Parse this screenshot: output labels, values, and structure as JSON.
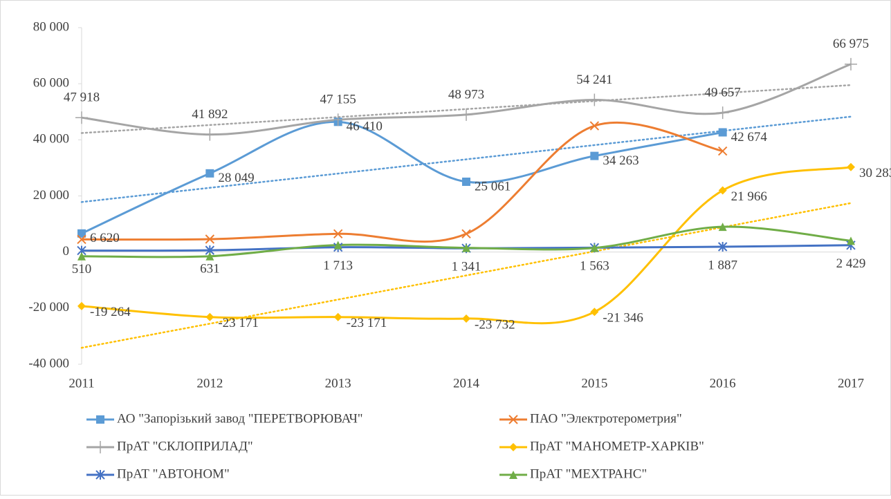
{
  "chart_data": {
    "type": "line",
    "categories": [
      "2011",
      "2012",
      "2013",
      "2014",
      "2015",
      "2016",
      "2017"
    ],
    "ylim": [
      -40000,
      80000
    ],
    "yticks": [
      {
        "value": -40000,
        "label": "-40 000"
      },
      {
        "value": -20000,
        "label": "-20 000"
      },
      0,
      {
        "value": 20000,
        "label": "20 000"
      },
      {
        "value": 40000,
        "label": "40 000"
      },
      {
        "value": 60000,
        "label": "60 000"
      },
      {
        "value": 80000,
        "label": "80 000"
      }
    ],
    "grid": false,
    "smooth": true,
    "legend": "bottom",
    "series": [
      {
        "name": "АО \"Запорізький завод \"ПЕРЕТВОРЮВАЧ\"",
        "color": "#5b9bd5",
        "marker": "square",
        "trendline": true,
        "values": [
          6620,
          28049,
          46410,
          25061,
          34263,
          42674,
          null
        ],
        "value_labels": [
          "6 620",
          "28 049",
          "46 410",
          "25 061",
          "34 263",
          "42 674",
          null
        ]
      },
      {
        "name": "ПАО \"Электротерометрия\"",
        "color": "#ed7d31",
        "marker": "x",
        "trendline": false,
        "values": [
          4500,
          4600,
          6500,
          6500,
          45000,
          36000,
          null
        ]
      },
      {
        "name": "ПрАТ \"СКЛОПРИЛАД\"",
        "color": "#a5a5a5",
        "marker": "plus",
        "trendline": true,
        "values": [
          47918,
          41892,
          47155,
          48973,
          54241,
          49657,
          66975
        ],
        "value_labels": [
          "47 918",
          "41 892",
          "47 155",
          "48 973",
          "54 241",
          "49 657",
          "66 975"
        ]
      },
      {
        "name": "ПрАТ \"МАНОМЕТР-ХАРКІВ\"",
        "color": "#ffc000",
        "marker": "diamond",
        "trendline": true,
        "values": [
          -19264,
          -23171,
          -23171,
          -23732,
          -21346,
          21966,
          30283
        ],
        "value_labels": [
          "-19 264",
          "-23 171",
          "-23 171",
          "-23 732",
          "-21 346",
          "21 966",
          "30 283"
        ]
      },
      {
        "name": "ПрАТ \"АВТОНОМ\"",
        "color": "#4472c4",
        "marker": "star",
        "trendline": false,
        "values": [
          510,
          631,
          1713,
          1341,
          1563,
          1887,
          2429
        ],
        "value_labels": [
          "510",
          "631",
          "1 713",
          "1 341",
          "1 563",
          "1 887",
          "2 429"
        ]
      },
      {
        "name": "ПрАТ \"МЕХТРАНС\"",
        "color": "#70ad47",
        "marker": "triangle",
        "trendline": false,
        "values": [
          -1500,
          -1500,
          2500,
          1500,
          1500,
          9000,
          4000
        ]
      }
    ]
  }
}
